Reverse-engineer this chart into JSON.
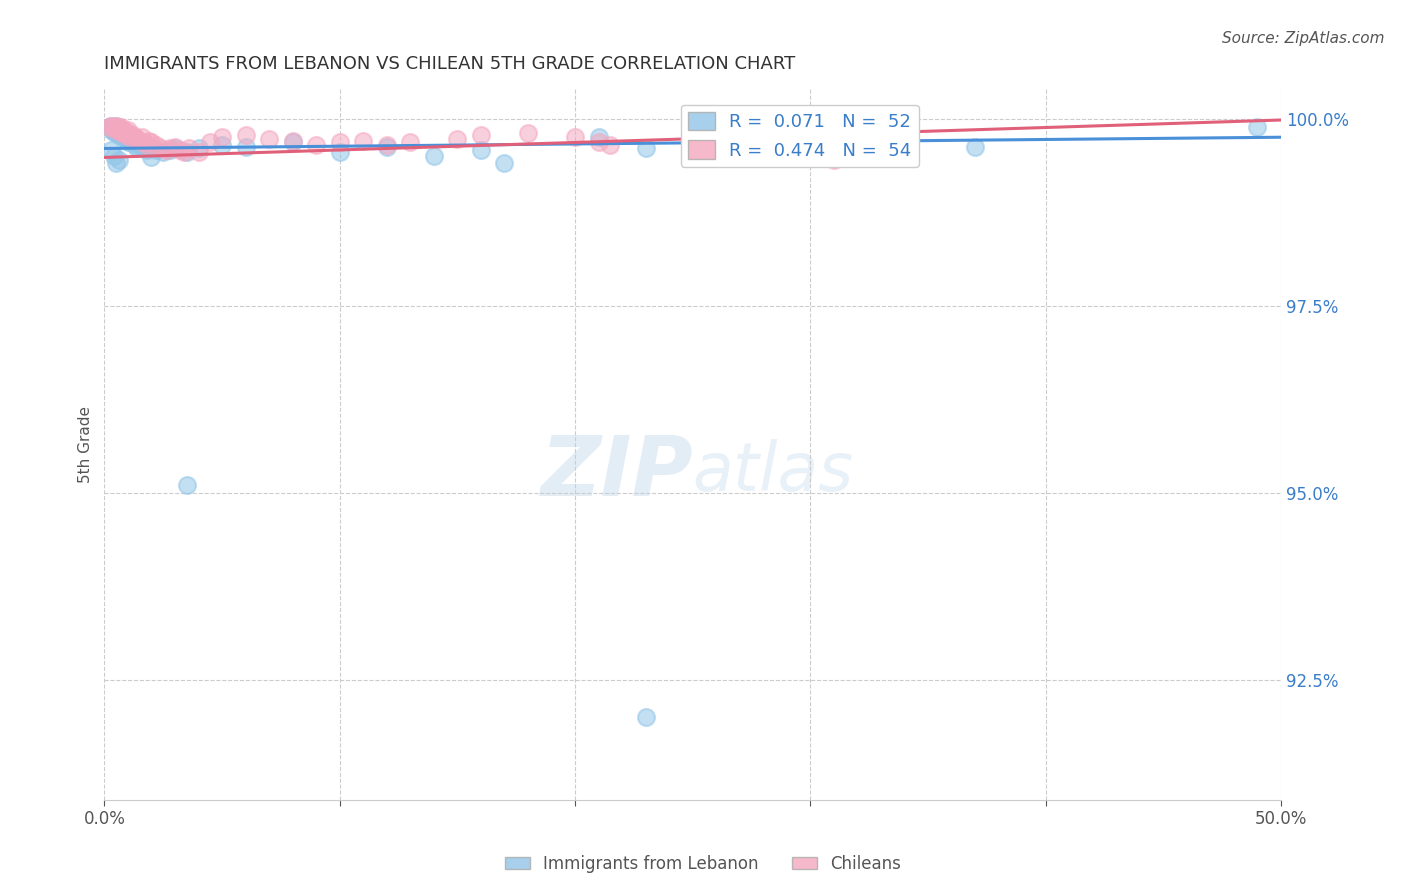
{
  "title": "IMMIGRANTS FROM LEBANON VS CHILEAN 5TH GRADE CORRELATION CHART",
  "source": "Source: ZipAtlas.com",
  "ylabel": "5th Grade",
  "xlim": [
    0.0,
    0.5
  ],
  "ylim": [
    0.909,
    1.004
  ],
  "xticks": [
    0.0,
    0.1,
    0.2,
    0.3,
    0.4,
    0.5
  ],
  "xticklabels": [
    "0.0%",
    "",
    "",
    "",
    "",
    "50.0%"
  ],
  "yticks": [
    0.925,
    0.95,
    0.975,
    1.0
  ],
  "yticklabels": [
    "92.5%",
    "95.0%",
    "97.5%",
    "100.0%"
  ],
  "legend_blue_label": "R =  0.071   N =  52",
  "legend_pink_label": "R =  0.474   N =  54",
  "bottom_legend_blue": "Immigrants from Lebanon",
  "bottom_legend_pink": "Chileans",
  "blue_color": "#92c5e8",
  "pink_color": "#f4a8c0",
  "blue_line_color": "#4a90d9",
  "pink_line_color": "#e0607a",
  "blue_x": [
    0.002,
    0.003,
    0.003,
    0.004,
    0.004,
    0.005,
    0.005,
    0.005,
    0.006,
    0.006,
    0.007,
    0.007,
    0.008,
    0.008,
    0.009,
    0.009,
    0.01,
    0.01,
    0.011,
    0.012,
    0.013,
    0.014,
    0.015,
    0.016,
    0.017,
    0.018,
    0.02,
    0.022,
    0.025,
    0.028,
    0.03,
    0.035,
    0.04,
    0.05,
    0.06,
    0.08,
    0.1,
    0.12,
    0.14,
    0.16,
    0.17,
    0.21,
    0.23,
    0.37,
    0.49,
    0.003,
    0.004,
    0.005,
    0.006,
    0.02,
    0.035,
    0.23
  ],
  "blue_y": [
    0.9988,
    0.999,
    0.9985,
    0.9988,
    0.9982,
    0.999,
    0.9988,
    0.998,
    0.9985,
    0.9978,
    0.9982,
    0.998,
    0.9978,
    0.9975,
    0.9975,
    0.9972,
    0.997,
    0.9968,
    0.997,
    0.9968,
    0.9965,
    0.996,
    0.9968,
    0.9962,
    0.996,
    0.9958,
    0.996,
    0.9958,
    0.9955,
    0.9958,
    0.996,
    0.9955,
    0.996,
    0.9965,
    0.9962,
    0.9968,
    0.9955,
    0.9962,
    0.995,
    0.9958,
    0.994,
    0.9975,
    0.996,
    0.9962,
    0.9988,
    0.9958,
    0.995,
    0.994,
    0.9945,
    0.9948,
    0.951,
    0.92
  ],
  "pink_x": [
    0.002,
    0.003,
    0.004,
    0.005,
    0.005,
    0.006,
    0.006,
    0.007,
    0.007,
    0.008,
    0.008,
    0.009,
    0.009,
    0.01,
    0.01,
    0.011,
    0.012,
    0.013,
    0.014,
    0.015,
    0.016,
    0.017,
    0.018,
    0.019,
    0.02,
    0.022,
    0.024,
    0.026,
    0.028,
    0.03,
    0.032,
    0.034,
    0.036,
    0.04,
    0.045,
    0.05,
    0.06,
    0.07,
    0.08,
    0.09,
    0.1,
    0.11,
    0.12,
    0.13,
    0.15,
    0.16,
    0.18,
    0.2,
    0.21,
    0.215,
    0.25,
    0.26,
    0.29,
    0.31
  ],
  "pink_y": [
    0.9988,
    0.999,
    0.9988,
    0.999,
    0.9985,
    0.9988,
    0.9985,
    0.9988,
    0.9982,
    0.9985,
    0.998,
    0.9982,
    0.9978,
    0.9985,
    0.998,
    0.9975,
    0.9978,
    0.9975,
    0.9972,
    0.997,
    0.9975,
    0.9968,
    0.9965,
    0.997,
    0.9968,
    0.9965,
    0.996,
    0.9958,
    0.996,
    0.9962,
    0.9958,
    0.9955,
    0.996,
    0.9955,
    0.9968,
    0.9975,
    0.9978,
    0.9972,
    0.997,
    0.9965,
    0.9968,
    0.997,
    0.9965,
    0.9968,
    0.9972,
    0.9978,
    0.998,
    0.9975,
    0.9968,
    0.9965,
    0.9962,
    0.996,
    0.995,
    0.9945
  ],
  "blue_trend_x": [
    0.0,
    0.5
  ],
  "blue_trend_y": [
    0.996,
    0.9975
  ],
  "pink_trend_x": [
    0.0,
    0.5
  ],
  "pink_trend_y": [
    0.9948,
    0.9998
  ]
}
